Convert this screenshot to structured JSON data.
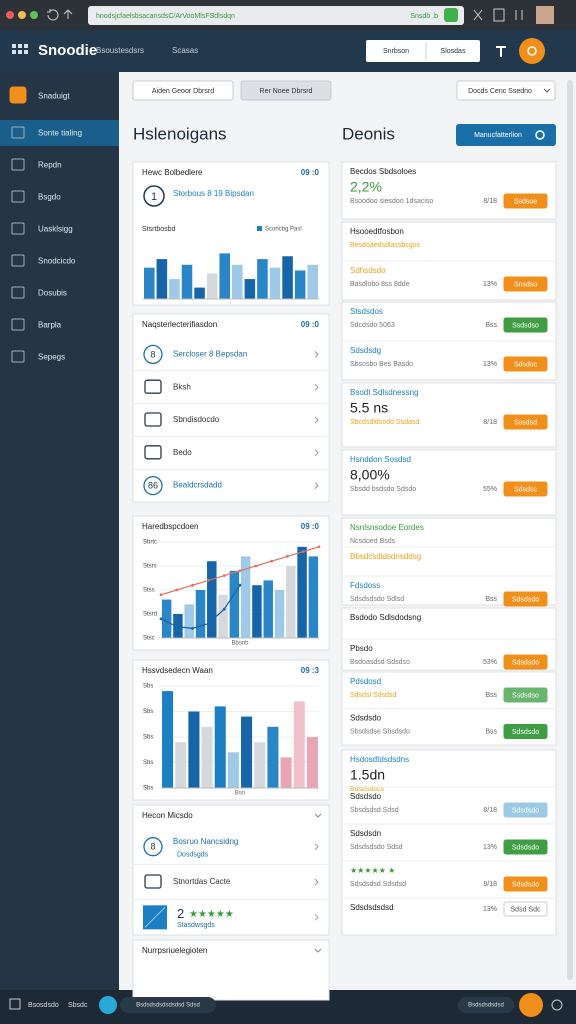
{
  "browser": {
    "url": "hnodsjcfaelsbsacansdsC/ArVooMlsFSdlsdqn",
    "url_badge": "Snsdb .b"
  },
  "header": {
    "brand": "Snoodie",
    "nav": [
      "Bsoustesdsrs",
      "Scasas"
    ],
    "search": "Snrbson",
    "search_button": "Slosdas"
  },
  "sidebar": {
    "active": 1,
    "items": [
      "Snaduigt",
      "Sonte tialing",
      "Repdn",
      "Bsgdo",
      "Uasklsigg",
      "Snodcicdo",
      "Dosubis",
      "Barpla",
      "Sepegs"
    ]
  },
  "toolbar": {
    "buttons": [
      "Aiden Geoor Dbrsrd",
      "Rer Noee Dbrsrd"
    ],
    "dropdown": "Docds Cenc Ssedno"
  },
  "left_title": "Hslenoigans",
  "right_title": "Deonis",
  "action": "Manucfatterlion",
  "left_cards": [
    {
      "title": "Hewc Bolbedlere",
      "badge": "09 :0",
      "summary": {
        "icon": "1",
        "text": "Storbous 8 19 Bipsdan"
      },
      "chart": {
        "label": "Stsrtbosbd",
        "legend": "Sconcbg Pasl",
        "ylim": [
          0,
          100
        ],
        "bars": [
          55,
          70,
          35,
          60,
          20,
          45,
          80,
          60,
          35,
          70,
          55,
          75,
          50,
          60
        ],
        "bar_colors": [
          "#2b86c8",
          "#1565a8",
          "#9fc9e8",
          "#2b86c8",
          "#1565a8",
          "#d5d9dd",
          "#2b86c8",
          "#9fc9e8",
          "#1565a8",
          "#2b86c8",
          "#9fc9e8",
          "#1565a8",
          "#2b86c8",
          "#9fc9e8"
        ]
      }
    },
    {
      "title": "Naqsterlecterifiasdon",
      "badge": "09 :0",
      "rows": [
        {
          "icon": "8",
          "text": "Sercloser 8 Bepsdan"
        },
        {
          "text": "Bksh"
        },
        {
          "text": "Sbndisdocdo"
        },
        {
          "text": "Bedo"
        },
        {
          "icon": "86",
          "text": "Bealdcrsdadd"
        }
      ]
    },
    {
      "title": "Haredbspcdoen",
      "badge": "09 :0",
      "chart": {
        "y_labels": [
          "Sbrtc",
          "Stsrs",
          "Stss",
          "Stsrd",
          "Stsc"
        ],
        "xlabel": "Bbsnb",
        "ylim": [
          0,
          100
        ],
        "bars": [
          40,
          25,
          35,
          50,
          80,
          45,
          70,
          85,
          55,
          60,
          50,
          75,
          95,
          85
        ],
        "bar_colors": [
          "#2b86c8",
          "#1565a8",
          "#9fc9e8",
          "#2b86c8",
          "#1565a8",
          "#d5d9dd",
          "#2b86c8",
          "#9fc9e8",
          "#1565a8",
          "#2b86c8",
          "#9fc9e8",
          "#d5d9dd",
          "#1565a8",
          "#2b86c8"
        ],
        "lines": [
          {
            "color": "#e07060",
            "values": [
              45,
              50,
              55,
              60,
              65,
              70,
              75,
              80,
              85,
              90,
              95
            ]
          },
          {
            "color": "#1565a8",
            "values": [
              20,
              12,
              10,
              15,
              30,
              55
            ]
          }
        ]
      }
    },
    {
      "title": "Hssvdsedecn Waan",
      "badge": "09 :3",
      "chart": {
        "y_labels": [
          "Sbs",
          "Sbs",
          "Sbs",
          "Sbs",
          "Sbs"
        ],
        "xlabel": "Bsn",
        "ylim": [
          0,
          100
        ],
        "bars": [
          95,
          45,
          75,
          60,
          80,
          35,
          70,
          45,
          60,
          30,
          85,
          50
        ],
        "bar_colors": [
          "#1b7fc4",
          "#d5d9dd",
          "#1565a8",
          "#d5d9dd",
          "#1b7fc4",
          "#9fc9e8",
          "#1565a8",
          "#d5d9dd",
          "#2b86c8",
          "#e8a5b5",
          "#f0c0cb",
          "#e8a5b5"
        ]
      }
    },
    {
      "title": "Hecon Micsdo",
      "rows": [
        {
          "icon": "8",
          "text": "Bosruo Nancsidng",
          "sub": "Dosdsgds"
        },
        {
          "text": "Stnortdas Cacte"
        },
        {
          "rating": "2",
          "stars": "★★★★★",
          "sub": "Stasdwsgds"
        }
      ]
    },
    {
      "title": "Nurrpsriuelegioten"
    }
  ],
  "right_cards": [
    {
      "rows": [
        {
          "title": "Becdos Sbdsoloes",
          "big": "2,2%",
          "big_color": "#3a9a3a",
          "sub": "Bsoodoo siesdoo 1dsaciso",
          "value": "8/18",
          "button": "Ssdsoe",
          "button_color": "#f0901a"
        }
      ]
    },
    {
      "rows": [
        {
          "title": "Hsooedtfosbon",
          "sub": "Besdoaedsdlassbcgos",
          "sub_color": "#e8a317"
        },
        {
          "title": "Sdhsdsdo",
          "title_color": "#e8a317",
          "sub": "Basdlobo 8ss 8dde",
          "value": "13%",
          "button": "Snsdso",
          "button_color": "#f0901a"
        }
      ]
    },
    {
      "rows": [
        {
          "title": "Stsdsdos",
          "title_color": "#1b7fc4",
          "sub": "Sdcdsdo 5063",
          "value": "Bss",
          "button": "Ssdsdso",
          "button_color": "#3f9e44"
        },
        {
          "title": "Sdsdsdg",
          "title_color": "#1b7fc4",
          "sub": "Sbsosbo Bes Basdo",
          "value": "13%",
          "button": "Sdsdoc",
          "button_color": "#f0901a"
        }
      ]
    },
    {
      "rows": [
        {
          "title": "Bsodt Sdlsdnessng",
          "title_color": "#1b7fc4",
          "big": "5.5 ns",
          "sub": "Sbcdsdldsodo Ssdasd",
          "sub_color": "#e8a317",
          "value": "8/18",
          "button": "Sssdsd",
          "button_color": "#f0901a"
        }
      ]
    },
    {
      "rows": [
        {
          "title": "Hsnddon Sosdsd",
          "title_color": "#1b7fc4",
          "big": "8,00%",
          "sub": "Sbsdd bsdsdo Sdsdo",
          "value": "55%",
          "button": "Sdsdsc",
          "button_color": "#f0901a"
        }
      ]
    },
    {
      "rows": [
        {
          "title": "Nsnlsnsodoe Eordes",
          "title_color": "#3a9a3a",
          "sub": "Ncsdoed Bsds"
        },
        {
          "title": "Bbsdcsdldsdnsddsg",
          "title_color": "#e8a317"
        },
        {
          "title": "Fdsdoss",
          "title_color": "#1b7fc4",
          "sub": "Sdsdsdsdo Sdlsd",
          "value": "Bss",
          "button": "Sdsdsdo",
          "button_color": "#f0901a"
        }
      ]
    },
    {
      "rows": [
        {
          "title": "Bsdodo Sdlsdodsng"
        },
        {
          "title": "Pbsdo",
          "sub": "Bsdoasdsd Sdsdso",
          "value": "53%",
          "button": "Sdsdsdo",
          "button_color": "#f0901a"
        }
      ]
    },
    {
      "rows": [
        {
          "title": "Pdsdosd",
          "title_color": "#1b7fc4",
          "sub": "Sdsdsl Sdsdsd",
          "sub_color": "#e8a317",
          "value": "Bss",
          "button": "Ssdsdso",
          "button_color": "#6ab56e"
        },
        {
          "title": "Sdsdsdo",
          "sub": "Sbsdsdse Sbsdsdo",
          "value": "Bss",
          "button": "Sdsdsdo",
          "button_color": "#3f9e44"
        }
      ]
    },
    {
      "rows": [
        {
          "title": "Hsdosdtdsdsdns",
          "title_color": "#1b7fc4",
          "big": "1.5dn",
          "sub": "Bdsdsdscs",
          "sub_color": "#e8a317"
        },
        {
          "title": "Sdsdsdo",
          "sub": "Sbsdsdsd Sdsd",
          "value": "8/18",
          "button": "Sdsdsdo",
          "button_color": "#9ccbe6"
        },
        {
          "title": "Sdsdsdn",
          "sub": "Sdsdsdsdo Sdsd",
          "value": "13%",
          "button": "Sdsdsdo",
          "button_color": "#3f9e44"
        },
        {
          "title": "★★★★★ ★",
          "title_color": "#3a9a3a",
          "sub": "Sdsdsdsd Sdsdsd",
          "value": "8/18",
          "button": "Sdsdsdo",
          "button_color": "#f0901a"
        },
        {
          "title": "Sdsdsdsdsd",
          "value": "13%",
          "button": "Sdsd Sdc",
          "button_color": "#ffffff"
        }
      ]
    }
  ],
  "footer": {
    "left": [
      "Bsosdsdo",
      "Sbsdc"
    ],
    "pill": "Bsdsdsdsdsdsdsd Sdsd",
    "right": "Bsdsdsdsdsd"
  }
}
